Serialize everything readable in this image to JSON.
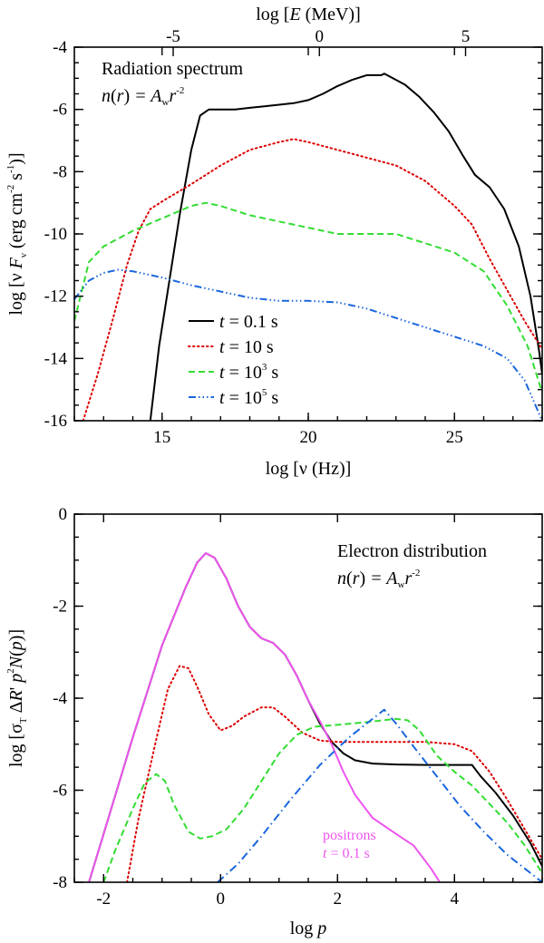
{
  "chart_data": [
    {
      "type": "line",
      "panel": "top",
      "xlabel": "log [ν (Hz)]",
      "xlabel_html": {
        "pre": "log [",
        "var": "ν",
        "post": " (Hz)]"
      },
      "ylabel": "log [ν Fν (erg cm-2 s-1)]",
      "ylabel_html": {
        "pre": "log [ν ",
        "F": "F",
        "sub": "ν",
        "mid": " (erg cm",
        "sup1": "-2",
        "mid2": " s",
        "sup2": "-1",
        "post": ")]"
      },
      "top_xlabel": "log [E (MeV)]",
      "top_xlabel_html": {
        "pre": "log [",
        "var": "E",
        "post": " (MeV)]"
      },
      "xlim": [
        12,
        28
      ],
      "ylim": [
        -16,
        -4
      ],
      "x_ticks": [
        {
          "v": 15,
          "label": "15"
        },
        {
          "v": 20,
          "label": "20"
        },
        {
          "v": 25,
          "label": "25"
        }
      ],
      "y_ticks": [
        {
          "v": -4,
          "label": "-4"
        },
        {
          "v": -6,
          "label": "-6"
        },
        {
          "v": -8,
          "label": "-8"
        },
        {
          "v": -10,
          "label": "-10"
        },
        {
          "v": -12,
          "label": "-12"
        },
        {
          "v": -14,
          "label": "-14"
        },
        {
          "v": -16,
          "label": "-16"
        }
      ],
      "top_ticks": [
        {
          "v": -5,
          "label": "-5"
        },
        {
          "v": 0,
          "label": "0"
        },
        {
          "v": 5,
          "label": "5"
        }
      ],
      "top_offset": 20.38,
      "annotation": {
        "line1": "Radiation spectrum",
        "n": "n",
        "r": "r",
        "eq": " = A",
        "sub": "w",
        "rr": "r",
        "sup": "-2"
      },
      "legend": [
        {
          "var": "t",
          "text": " = 0.1 s",
          "sup": ""
        },
        {
          "var": "t",
          "text": " = 10 s",
          "sup": ""
        },
        {
          "var": "t",
          "text": " = 10",
          "sup": "3",
          "post": " s"
        },
        {
          "var": "t",
          "text": " = 10",
          "sup": "5",
          "post": " s"
        }
      ],
      "series": [
        {
          "color": "#000000",
          "dash": "solid",
          "points": [
            [
              14.6,
              -16
            ],
            [
              14.9,
              -13.6
            ],
            [
              15.2,
              -11.8
            ],
            [
              15.6,
              -9.4
            ],
            [
              16.0,
              -7.3
            ],
            [
              16.3,
              -6.2
            ],
            [
              16.6,
              -6.0
            ],
            [
              17.0,
              -6.0
            ],
            [
              17.5,
              -6.0
            ],
            [
              18.0,
              -5.95
            ],
            [
              18.5,
              -5.9
            ],
            [
              19.0,
              -5.85
            ],
            [
              19.5,
              -5.8
            ],
            [
              20.0,
              -5.7
            ],
            [
              20.5,
              -5.5
            ],
            [
              21.0,
              -5.25
            ],
            [
              21.5,
              -5.05
            ],
            [
              22.0,
              -4.9
            ],
            [
              22.5,
              -4.9
            ],
            [
              22.6,
              -4.85
            ],
            [
              22.8,
              -4.95
            ],
            [
              23.3,
              -5.2
            ],
            [
              23.8,
              -5.6
            ],
            [
              24.3,
              -6.1
            ],
            [
              24.8,
              -6.7
            ],
            [
              25.3,
              -7.5
            ],
            [
              25.7,
              -8.1
            ],
            [
              26.2,
              -8.5
            ],
            [
              26.7,
              -9.2
            ],
            [
              27.2,
              -10.4
            ],
            [
              27.6,
              -12.0
            ],
            [
              27.9,
              -13.8
            ],
            [
              28.0,
              -14.5
            ]
          ]
        },
        {
          "color": "#dd0000",
          "dash": "dot",
          "points": [
            [
              12.3,
              -16
            ],
            [
              12.8,
              -14.5
            ],
            [
              13.3,
              -12.8
            ],
            [
              13.8,
              -11.0
            ],
            [
              14.2,
              -9.9
            ],
            [
              14.6,
              -9.2
            ],
            [
              15.1,
              -8.9
            ],
            [
              16.0,
              -8.4
            ],
            [
              17.0,
              -7.8
            ],
            [
              18.0,
              -7.3
            ],
            [
              19.0,
              -7.05
            ],
            [
              19.5,
              -6.95
            ],
            [
              20.0,
              -7.05
            ],
            [
              21.0,
              -7.3
            ],
            [
              22.0,
              -7.55
            ],
            [
              23.0,
              -7.8
            ],
            [
              24.0,
              -8.3
            ],
            [
              25.0,
              -9.1
            ],
            [
              25.6,
              -9.7
            ],
            [
              26.2,
              -10.8
            ],
            [
              26.8,
              -11.8
            ],
            [
              27.4,
              -12.8
            ],
            [
              28.0,
              -13.7
            ]
          ]
        },
        {
          "color": "#33dd33",
          "dash": "dash",
          "points": [
            [
              12.0,
              -12.8
            ],
            [
              12.5,
              -10.9
            ],
            [
              13.0,
              -10.4
            ],
            [
              14.0,
              -9.9
            ],
            [
              15.0,
              -9.5
            ],
            [
              16.0,
              -9.1
            ],
            [
              16.5,
              -9.0
            ],
            [
              17.0,
              -9.1
            ],
            [
              18.0,
              -9.4
            ],
            [
              19.0,
              -9.6
            ],
            [
              20.0,
              -9.8
            ],
            [
              21.0,
              -10.0
            ],
            [
              22.0,
              -10.0
            ],
            [
              23.0,
              -10.0
            ],
            [
              24.0,
              -10.3
            ],
            [
              25.0,
              -10.6
            ],
            [
              26.0,
              -11.2
            ],
            [
              26.8,
              -12.3
            ],
            [
              27.5,
              -13.6
            ],
            [
              28.0,
              -15.1
            ]
          ]
        },
        {
          "color": "#1a66dd",
          "dash": "dashdotdotdot",
          "points": [
            [
              12.0,
              -12.1
            ],
            [
              12.5,
              -11.5
            ],
            [
              13.0,
              -11.25
            ],
            [
              13.5,
              -11.15
            ],
            [
              14.0,
              -11.2
            ],
            [
              15.0,
              -11.4
            ],
            [
              16.0,
              -11.65
            ],
            [
              17.0,
              -11.85
            ],
            [
              18.0,
              -12.05
            ],
            [
              19.0,
              -12.15
            ],
            [
              20.0,
              -12.15
            ],
            [
              21.0,
              -12.2
            ],
            [
              22.0,
              -12.4
            ],
            [
              23.0,
              -12.7
            ],
            [
              24.0,
              -13.0
            ],
            [
              25.0,
              -13.3
            ],
            [
              26.0,
              -13.6
            ],
            [
              26.8,
              -14.0
            ],
            [
              27.4,
              -14.7
            ],
            [
              28.0,
              -16.0
            ]
          ]
        }
      ]
    },
    {
      "type": "line",
      "panel": "bottom",
      "xlabel": "log p",
      "xlabel_html": {
        "pre": "log  ",
        "var": "p",
        "post": ""
      },
      "ylabel": "log [σT ΔR' p2N(p)]",
      "ylabel_html": {
        "pre": "log [σ",
        "sub": "T",
        "mid": " Δ",
        "R": "R",
        "mid2": "' ",
        "p": "p",
        "sup": "2",
        "N": "N",
        "post": "(",
        "p2": "p",
        "end": ")]"
      },
      "xlim": [
        -2.5,
        5.5
      ],
      "ylim": [
        -8,
        0
      ],
      "x_ticks": [
        {
          "v": -2,
          "label": "-2"
        },
        {
          "v": 0,
          "label": "0"
        },
        {
          "v": 2,
          "label": "2"
        },
        {
          "v": 4,
          "label": "4"
        }
      ],
      "y_ticks": [
        {
          "v": 0,
          "label": "0"
        },
        {
          "v": -2,
          "label": "-2"
        },
        {
          "v": -4,
          "label": "-4"
        },
        {
          "v": -6,
          "label": "-6"
        },
        {
          "v": -8,
          "label": "-8"
        }
      ],
      "annotation": {
        "line1": "Electron distribution",
        "n": "n",
        "r": "r",
        "eq": " = A",
        "sub": "w",
        "rr": "r",
        "sup": "-2"
      },
      "positron_label": {
        "line1": "positrons",
        "var": "t",
        "line2": " = 0.1 s",
        "color": "#ee55ee"
      },
      "series": [
        {
          "color": "#000000",
          "dash": "solid",
          "points": [
            [
              -2.25,
              -8
            ],
            [
              -2.0,
              -6.95
            ],
            [
              -1.5,
              -4.85
            ],
            [
              -1.0,
              -2.85
            ],
            [
              -0.6,
              -1.6
            ],
            [
              -0.4,
              -1.05
            ],
            [
              -0.25,
              -0.85
            ],
            [
              -0.1,
              -0.95
            ],
            [
              0.1,
              -1.4
            ],
            [
              0.3,
              -2.0
            ],
            [
              0.5,
              -2.45
            ],
            [
              0.7,
              -2.7
            ],
            [
              0.9,
              -2.8
            ],
            [
              1.1,
              -3.05
            ],
            [
              1.3,
              -3.5
            ],
            [
              1.5,
              -4.05
            ],
            [
              1.7,
              -4.55
            ],
            [
              1.9,
              -4.95
            ],
            [
              2.1,
              -5.2
            ],
            [
              2.3,
              -5.35
            ],
            [
              2.6,
              -5.42
            ],
            [
              3.0,
              -5.44
            ],
            [
              3.5,
              -5.45
            ],
            [
              4.0,
              -5.45
            ],
            [
              4.3,
              -5.45
            ],
            [
              4.45,
              -5.7
            ],
            [
              4.7,
              -6.05
            ],
            [
              5.0,
              -6.55
            ],
            [
              5.3,
              -7.15
            ],
            [
              5.5,
              -7.65
            ]
          ]
        },
        {
          "color": "#ee55ee",
          "dash": "solid",
          "points": [
            [
              -2.25,
              -8
            ],
            [
              -2.0,
              -6.95
            ],
            [
              -1.5,
              -4.85
            ],
            [
              -1.0,
              -2.85
            ],
            [
              -0.6,
              -1.6
            ],
            [
              -0.4,
              -1.05
            ],
            [
              -0.25,
              -0.85
            ],
            [
              -0.1,
              -0.95
            ],
            [
              0.1,
              -1.4
            ],
            [
              0.3,
              -2.0
            ],
            [
              0.5,
              -2.45
            ],
            [
              0.7,
              -2.7
            ],
            [
              0.9,
              -2.8
            ],
            [
              1.1,
              -3.05
            ],
            [
              1.3,
              -3.5
            ],
            [
              1.5,
              -4.05
            ],
            [
              1.7,
              -4.5
            ],
            [
              1.9,
              -5.0
            ],
            [
              2.1,
              -5.6
            ],
            [
              2.3,
              -6.1
            ],
            [
              2.6,
              -6.6
            ],
            [
              3.0,
              -6.95
            ],
            [
              3.3,
              -7.2
            ],
            [
              3.6,
              -7.7
            ],
            [
              3.75,
              -8.0
            ]
          ]
        },
        {
          "color": "#dd0000",
          "dash": "dot",
          "points": [
            [
              -1.6,
              -8
            ],
            [
              -1.4,
              -6.6
            ],
            [
              -1.1,
              -4.9
            ],
            [
              -0.9,
              -3.8
            ],
            [
              -0.7,
              -3.3
            ],
            [
              -0.55,
              -3.35
            ],
            [
              -0.4,
              -3.75
            ],
            [
              -0.2,
              -4.35
            ],
            [
              0.0,
              -4.7
            ],
            [
              0.2,
              -4.6
            ],
            [
              0.4,
              -4.4
            ],
            [
              0.7,
              -4.2
            ],
            [
              0.9,
              -4.2
            ],
            [
              1.1,
              -4.4
            ],
            [
              1.4,
              -4.75
            ],
            [
              1.7,
              -4.92
            ],
            [
              2.0,
              -4.95
            ],
            [
              2.5,
              -4.95
            ],
            [
              3.0,
              -4.95
            ],
            [
              3.5,
              -4.95
            ],
            [
              4.0,
              -5.0
            ],
            [
              4.3,
              -5.15
            ],
            [
              4.6,
              -5.6
            ],
            [
              4.9,
              -6.2
            ],
            [
              5.2,
              -6.85
            ],
            [
              5.5,
              -7.5
            ]
          ]
        },
        {
          "color": "#33dd33",
          "dash": "dash",
          "points": [
            [
              -2.0,
              -8
            ],
            [
              -1.8,
              -7.3
            ],
            [
              -1.5,
              -6.4
            ],
            [
              -1.3,
              -5.85
            ],
            [
              -1.1,
              -5.65
            ],
            [
              -0.95,
              -5.8
            ],
            [
              -0.8,
              -6.3
            ],
            [
              -0.55,
              -6.9
            ],
            [
              -0.35,
              -7.05
            ],
            [
              -0.15,
              -7.0
            ],
            [
              0.1,
              -6.85
            ],
            [
              0.4,
              -6.4
            ],
            [
              0.7,
              -5.8
            ],
            [
              1.0,
              -5.2
            ],
            [
              1.3,
              -4.8
            ],
            [
              1.6,
              -4.62
            ],
            [
              2.0,
              -4.58
            ],
            [
              2.5,
              -4.52
            ],
            [
              3.0,
              -4.45
            ],
            [
              3.2,
              -4.48
            ],
            [
              3.4,
              -4.7
            ],
            [
              3.7,
              -5.25
            ],
            [
              4.0,
              -5.6
            ],
            [
              4.3,
              -5.9
            ],
            [
              4.6,
              -6.3
            ],
            [
              4.9,
              -6.7
            ],
            [
              5.2,
              -7.2
            ],
            [
              5.5,
              -7.8
            ]
          ]
        },
        {
          "color": "#1a66dd",
          "dash": "dashdot",
          "points": [
            [
              -0.05,
              -8
            ],
            [
              0.3,
              -7.6
            ],
            [
              0.7,
              -7.0
            ],
            [
              1.2,
              -6.2
            ],
            [
              1.7,
              -5.45
            ],
            [
              2.2,
              -4.85
            ],
            [
              2.5,
              -4.55
            ],
            [
              2.8,
              -4.25
            ],
            [
              3.0,
              -4.55
            ],
            [
              3.3,
              -5.05
            ],
            [
              3.7,
              -5.7
            ],
            [
              4.1,
              -6.35
            ],
            [
              4.5,
              -6.9
            ],
            [
              4.9,
              -7.4
            ],
            [
              5.2,
              -7.7
            ],
            [
              5.5,
              -8.0
            ]
          ]
        }
      ]
    }
  ]
}
